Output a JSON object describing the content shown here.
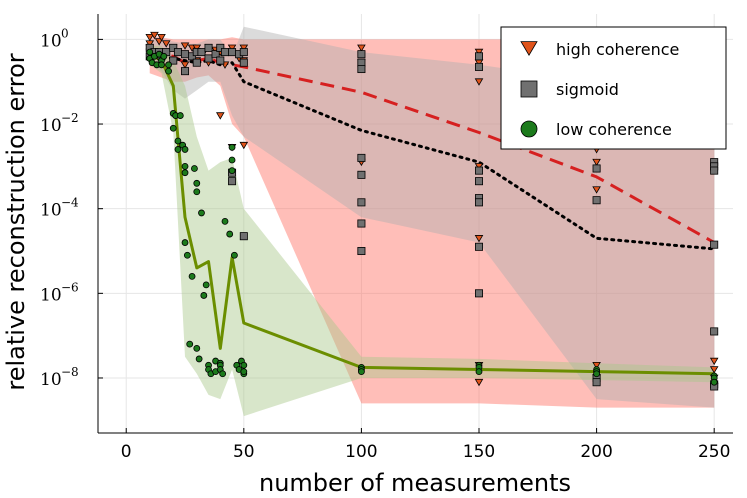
{
  "chart_data": {
    "type": "scatter",
    "xlabel": "number of measurements",
    "ylabel": "relative reconstruction error",
    "xlim": [
      -12,
      258
    ],
    "ylim_log10": [
      -9.3,
      0.6
    ],
    "yscale": "log",
    "grid": true,
    "legend_position": "top-right",
    "x_ticks": [
      {
        "value": 0,
        "label": "0"
      },
      {
        "value": 50,
        "label": "50"
      },
      {
        "value": 100,
        "label": "100"
      },
      {
        "value": 150,
        "label": "150"
      },
      {
        "value": 200,
        "label": "200"
      },
      {
        "value": 250,
        "label": "250"
      }
    ],
    "y_ticks": [
      {
        "exp": 0,
        "base": "10",
        "sup": "0"
      },
      {
        "exp": -2,
        "base": "10",
        "sup": "−2"
      },
      {
        "exp": -4,
        "base": "10",
        "sup": "−4"
      },
      {
        "exp": -6,
        "base": "10",
        "sup": "−6"
      },
      {
        "exp": -8,
        "base": "10",
        "sup": "−8"
      }
    ],
    "series": [
      {
        "name": "high coherence",
        "color": "#e0541b",
        "band_color": "#ff6f61",
        "marker": "triangle-down",
        "line": {
          "style": "dashed",
          "color": "#d62020",
          "x": [
            10,
            15,
            20,
            25,
            30,
            35,
            40,
            45,
            50,
            100,
            150,
            200,
            250
          ],
          "log10": [
            -0.3,
            -0.35,
            -0.4,
            -0.55,
            -0.5,
            -0.45,
            -0.55,
            -0.6,
            -0.65,
            -1.25,
            -2.2,
            -3.25,
            -4.8
          ]
        },
        "band": {
          "x": [
            10,
            15,
            20,
            25,
            30,
            35,
            40,
            45,
            50,
            100,
            150,
            200,
            250
          ],
          "upper": [
            0.1,
            0.05,
            0.0,
            0.0,
            0.0,
            0.0,
            0.0,
            0.05,
            0.0,
            0.0,
            0.0,
            0.0,
            0.0
          ],
          "lower": [
            -0.8,
            -0.9,
            -1.0,
            -1.0,
            -0.9,
            -0.85,
            -1.1,
            -2.0,
            -2.3,
            -8.6,
            -8.6,
            -8.7,
            -8.7
          ]
        },
        "points": [
          [
            10,
            0.05
          ],
          [
            10,
            -0.1
          ],
          [
            10,
            -0.2
          ],
          [
            10,
            -0.3
          ],
          [
            12,
            0.1
          ],
          [
            14,
            -0.05
          ],
          [
            14,
            -0.4
          ],
          [
            15,
            0.05
          ],
          [
            15,
            -0.3
          ],
          [
            15,
            -0.5
          ],
          [
            17,
            -0.1
          ],
          [
            20,
            -0.2
          ],
          [
            20,
            -0.5
          ],
          [
            22,
            -0.3
          ],
          [
            25,
            -0.15
          ],
          [
            25,
            -0.6
          ],
          [
            28,
            -0.2
          ],
          [
            30,
            -0.2
          ],
          [
            30,
            -0.5
          ],
          [
            33,
            -0.3
          ],
          [
            35,
            -0.2
          ],
          [
            35,
            -0.55
          ],
          [
            38,
            -0.25
          ],
          [
            40,
            -0.3
          ],
          [
            40,
            -1.8
          ],
          [
            42,
            -0.6
          ],
          [
            45,
            -0.2
          ],
          [
            45,
            -2.55
          ],
          [
            48,
            -0.45
          ],
          [
            50,
            -0.2
          ],
          [
            50,
            -0.5
          ],
          [
            50,
            -2.5
          ],
          [
            100,
            -0.2
          ],
          [
            100,
            -0.55
          ],
          [
            100,
            -2.9
          ],
          [
            150,
            -0.3
          ],
          [
            150,
            -0.55
          ],
          [
            150,
            -1.0
          ],
          [
            150,
            -3.0
          ],
          [
            150,
            -4.7
          ],
          [
            150,
            -7.7
          ],
          [
            150,
            -8.1
          ],
          [
            200,
            -2.2
          ],
          [
            200,
            -2.6
          ],
          [
            200,
            -2.9
          ],
          [
            200,
            -3.55
          ],
          [
            200,
            -7.7
          ],
          [
            200,
            -8.0
          ],
          [
            250,
            -0.3
          ],
          [
            250,
            -2.0
          ],
          [
            250,
            -2.5
          ],
          [
            250,
            -7.6
          ],
          [
            250,
            -7.8
          ],
          [
            250,
            -8.0
          ],
          [
            250,
            -8.2
          ]
        ]
      },
      {
        "name": "sigmoid",
        "color": "#707070",
        "band_color": "#b0b0b0",
        "marker": "square",
        "line": {
          "style": "dotted",
          "color": "#000000",
          "x": [
            10,
            15,
            20,
            25,
            30,
            35,
            40,
            45,
            50,
            100,
            150,
            200,
            250
          ],
          "log10": [
            -0.35,
            -0.4,
            -0.45,
            -0.5,
            -0.55,
            -0.5,
            -0.6,
            -0.55,
            -1.0,
            -2.15,
            -2.9,
            -4.7,
            -4.95
          ]
        },
        "band": {
          "x": [
            10,
            15,
            20,
            25,
            30,
            35,
            40,
            45,
            50,
            100,
            150,
            200,
            250
          ],
          "upper": [
            0.0,
            0.0,
            -0.05,
            -0.1,
            -0.1,
            0.0,
            0.0,
            -0.4,
            0.3,
            -0.3,
            -0.6,
            -1.0,
            -1.5
          ],
          "lower": [
            -0.6,
            -0.75,
            -1.2,
            -1.4,
            -1.2,
            -1.0,
            -1.0,
            -1.8,
            -2.3,
            -4.2,
            -4.8,
            -8.5,
            -8.7
          ]
        },
        "points": [
          [
            10,
            -0.2
          ],
          [
            10,
            -0.4
          ],
          [
            12,
            -0.3
          ],
          [
            14,
            -0.3
          ],
          [
            15,
            -0.4
          ],
          [
            17,
            -0.3
          ],
          [
            20,
            -0.2
          ],
          [
            20,
            -0.5
          ],
          [
            22,
            -0.3
          ],
          [
            25,
            -0.35
          ],
          [
            25,
            -0.75
          ],
          [
            28,
            -0.4
          ],
          [
            30,
            -0.3
          ],
          [
            30,
            -0.55
          ],
          [
            32,
            -0.3
          ],
          [
            35,
            -0.2
          ],
          [
            35,
            -0.45
          ],
          [
            38,
            -0.35
          ],
          [
            40,
            -0.2
          ],
          [
            40,
            -0.5
          ],
          [
            42,
            -0.3
          ],
          [
            45,
            -0.3
          ],
          [
            45,
            -3.15
          ],
          [
            45,
            -3.35
          ],
          [
            48,
            -0.35
          ],
          [
            50,
            -0.3
          ],
          [
            50,
            -0.55
          ],
          [
            50,
            -4.65
          ],
          [
            100,
            -0.35
          ],
          [
            100,
            -0.55
          ],
          [
            100,
            -0.7
          ],
          [
            100,
            -2.8
          ],
          [
            100,
            -3.2
          ],
          [
            100,
            -3.85
          ],
          [
            100,
            -4.35
          ],
          [
            100,
            -5.0
          ],
          [
            150,
            -0.4
          ],
          [
            150,
            -0.65
          ],
          [
            150,
            -3.1
          ],
          [
            150,
            -3.35
          ],
          [
            150,
            -3.75
          ],
          [
            150,
            -3.85
          ],
          [
            150,
            -4.9
          ],
          [
            150,
            -6.0
          ],
          [
            200,
            -3.05
          ],
          [
            200,
            -3.8
          ],
          [
            200,
            -8.0
          ],
          [
            200,
            -8.1
          ],
          [
            250,
            -0.45
          ],
          [
            250,
            -2.9
          ],
          [
            250,
            -3.0
          ],
          [
            250,
            -3.1
          ],
          [
            250,
            -4.85
          ],
          [
            250,
            -6.9
          ],
          [
            250,
            -8.15
          ],
          [
            250,
            -8.2
          ]
        ]
      },
      {
        "name": "low coherence",
        "color": "#1c7a1c",
        "band_color": "#a8c88a",
        "marker": "circle",
        "line": {
          "style": "solid",
          "color": "#6b8e00",
          "x": [
            10,
            15,
            20,
            25,
            30,
            35,
            40,
            45,
            50,
            100,
            150,
            200,
            250
          ],
          "log10": [
            -0.35,
            -0.5,
            -1.1,
            -4.2,
            -5.4,
            -5.25,
            -7.3,
            -5.15,
            -6.7,
            -7.75,
            -7.8,
            -7.85,
            -7.9
          ]
        },
        "band": {
          "x": [
            10,
            15,
            20,
            25,
            30,
            35,
            40,
            45,
            50,
            100,
            150,
            200,
            250
          ],
          "upper": [
            -0.15,
            -0.15,
            -0.5,
            -1.1,
            -2.3,
            -3.1,
            -2.9,
            -2.8,
            -4.0,
            -7.5,
            -7.55,
            -7.65,
            -7.75
          ],
          "lower": [
            -0.6,
            -0.8,
            -2.2,
            -7.5,
            -7.9,
            -8.4,
            -8.5,
            -7.8,
            -8.9,
            -8.0,
            -8.0,
            -8.05,
            -8.1
          ]
        },
        "points": [
          [
            10,
            -0.3
          ],
          [
            10,
            -0.45
          ],
          [
            11,
            -0.55
          ],
          [
            12,
            -0.4
          ],
          [
            13,
            -0.6
          ],
          [
            14,
            -0.35
          ],
          [
            15,
            -0.5
          ],
          [
            15,
            -0.6
          ],
          [
            16,
            -0.4
          ],
          [
            18,
            -0.6
          ],
          [
            18,
            -0.75
          ],
          [
            20,
            -1.75
          ],
          [
            20,
            -2.1
          ],
          [
            21,
            -1.8
          ],
          [
            22,
            -2.4
          ],
          [
            22,
            -2.6
          ],
          [
            23,
            -1.8
          ],
          [
            24,
            -2.5
          ],
          [
            25,
            -2.6
          ],
          [
            25,
            -3.0
          ],
          [
            25,
            -3.15
          ],
          [
            25,
            -4.8
          ],
          [
            26,
            -5.1
          ],
          [
            27,
            -7.2
          ],
          [
            28,
            -5.6
          ],
          [
            29,
            -3.05
          ],
          [
            30,
            -3.4
          ],
          [
            30,
            -3.6
          ],
          [
            30,
            -7.3
          ],
          [
            31,
            -7.55
          ],
          [
            32,
            -4.1
          ],
          [
            33,
            -6.05
          ],
          [
            34,
            -5.8
          ],
          [
            35,
            -7.7
          ],
          [
            35,
            -7.8
          ],
          [
            36,
            -7.9
          ],
          [
            38,
            -7.6
          ],
          [
            38,
            -7.85
          ],
          [
            40,
            -7.65
          ],
          [
            40,
            -7.7
          ],
          [
            40,
            -7.8
          ],
          [
            41,
            -7.9
          ],
          [
            42,
            -4.3
          ],
          [
            44,
            -4.6
          ],
          [
            45,
            -2.55
          ],
          [
            45,
            -2.85
          ],
          [
            45,
            -3.1
          ],
          [
            46,
            -5.1
          ],
          [
            47,
            -7.7
          ],
          [
            48,
            -7.8
          ],
          [
            49,
            -7.6
          ],
          [
            50,
            -7.9
          ],
          [
            50,
            -7.7
          ],
          [
            50,
            -7.85
          ],
          [
            100,
            -7.75
          ],
          [
            100,
            -7.8
          ],
          [
            100,
            -7.85
          ],
          [
            150,
            -7.7
          ],
          [
            150,
            -7.75
          ],
          [
            150,
            -7.85
          ],
          [
            200,
            -7.8
          ],
          [
            200,
            -7.85
          ],
          [
            200,
            -7.9
          ],
          [
            250,
            -7.95
          ],
          [
            250,
            -8.0
          ],
          [
            250,
            -8.1
          ]
        ]
      }
    ]
  }
}
